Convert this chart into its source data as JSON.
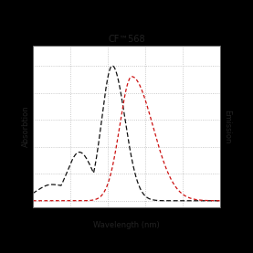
{
  "title": "CF™568",
  "xlabel": "Wavelength (nm)",
  "ylabel_left": "Absorbtion",
  "ylabel_right": "Emission",
  "xmin": 450,
  "xmax": 700,
  "xticks": [
    450,
    500,
    550,
    600,
    650,
    700
  ],
  "absorption_peak": 556,
  "emission_peak": 582,
  "black_color": "#111111",
  "red_color": "#cc1111",
  "background": "#000000",
  "plot_bg": "#ffffff",
  "grid_color": "#bbbbbb",
  "title_fontsize": 7,
  "axis_label_fontsize": 6,
  "tick_fontsize": 6
}
